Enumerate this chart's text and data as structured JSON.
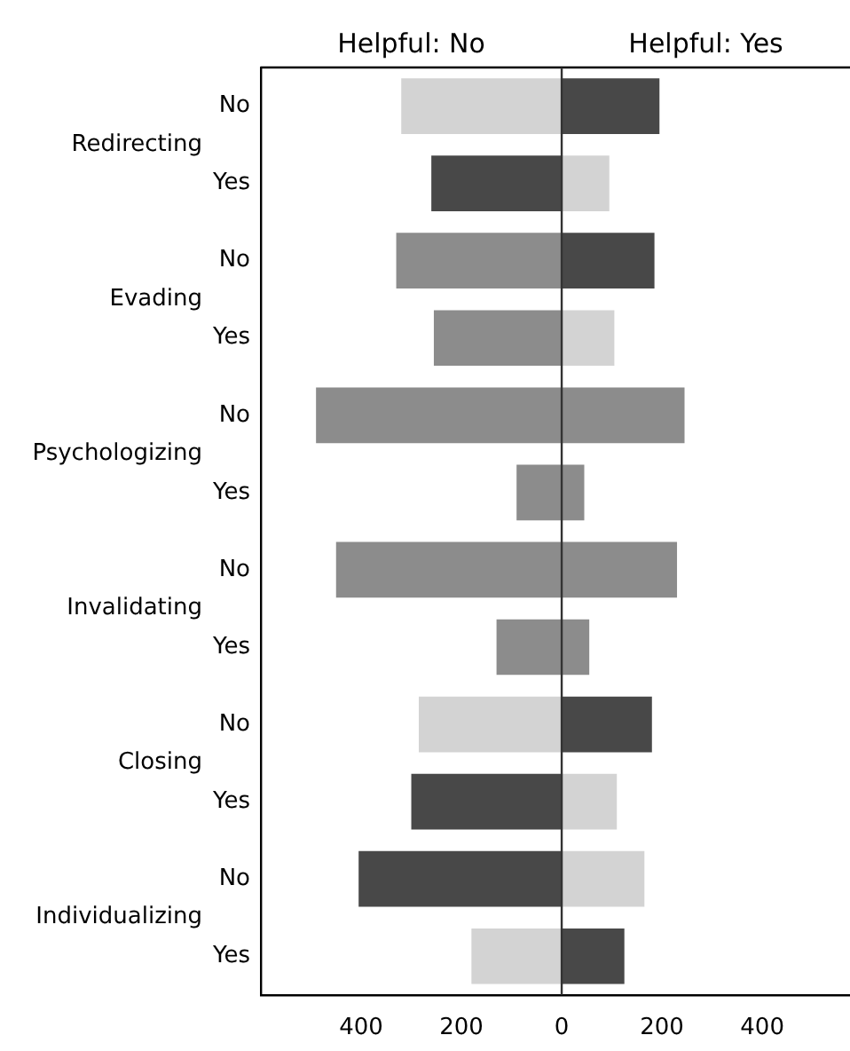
{
  "chart_data": {
    "type": "bar",
    "orientation": "horizontal",
    "stacked": true,
    "categories": [
      "No",
      "Yes",
      "No",
      "Yes",
      "No",
      "Yes",
      "No",
      "Yes",
      "No",
      "Yes",
      "No",
      "Yes"
    ],
    "annotations": [
      "Redirecting",
      "Evading",
      "Psychologizing",
      "Invalidating",
      "Closing",
      "Individualizing"
    ],
    "series": [
      {
        "name": "Helpful: No",
        "values": [
          -320,
          -260,
          -330,
          -255,
          -490,
          -90,
          -450,
          -130,
          -285,
          -300,
          -405,
          -180
        ],
        "colors": [
          "#d3d3d3",
          "#484848",
          "#8c8c8c",
          "#8c8c8c",
          "#8c8c8c",
          "#8c8c8c",
          "#8c8c8c",
          "#8c8c8c",
          "#d3d3d3",
          "#484848",
          "#484848",
          "#d3d3d3"
        ]
      },
      {
        "name": "Helpful: Yes",
        "values": [
          195,
          95,
          185,
          105,
          245,
          45,
          230,
          55,
          180,
          110,
          165,
          125
        ],
        "colors": [
          "#484848",
          "#d3d3d3",
          "#484848",
          "#d3d3d3",
          "#8c8c8c",
          "#8c8c8c",
          "#8c8c8c",
          "#8c8c8c",
          "#484848",
          "#d3d3d3",
          "#d3d3d3",
          "#484848"
        ]
      }
    ],
    "xlim": [
      -600,
      575
    ],
    "xticks": [
      {
        "value": -400,
        "label": "400"
      },
      {
        "value": -200,
        "label": "200"
      },
      0,
      200,
      400
    ],
    "ref_lines": [
      {
        "axis": "x",
        "value": 0,
        "color": "#333333"
      }
    ],
    "grid": false,
    "legend": false
  }
}
